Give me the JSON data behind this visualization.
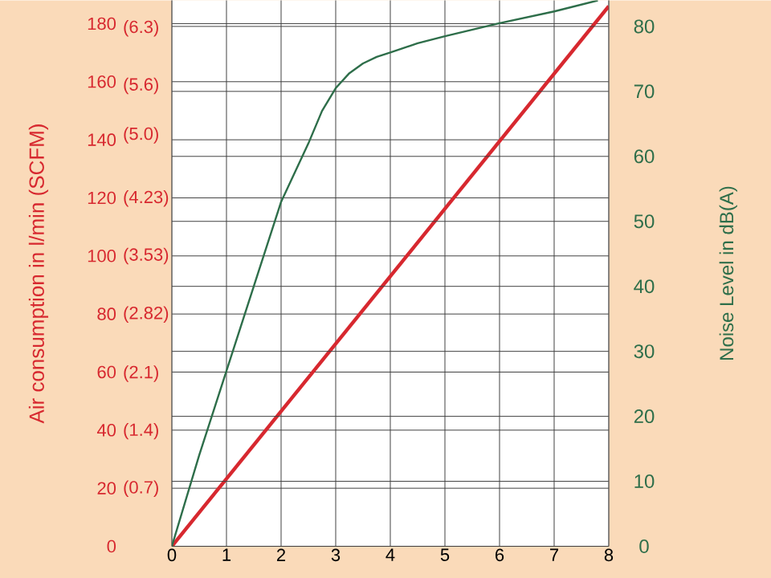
{
  "chart_data": {
    "type": "line",
    "ylabel": "Air consumption in l/min (SCFM)",
    "y2label": "Noise Level in dB(A)",
    "xlim": [
      0,
      8
    ],
    "xticks": [
      0,
      1,
      2,
      3,
      4,
      5,
      6,
      7,
      8
    ],
    "ylim": [
      0,
      188
    ],
    "yticks": [
      0,
      20,
      40,
      60,
      80,
      100,
      120,
      140,
      160,
      180
    ],
    "y3lim": [
      0,
      6.64
    ],
    "y3ticks": [
      {
        "value": 0.7,
        "label": "(0.7)"
      },
      {
        "value": 1.4,
        "label": "(1.4)"
      },
      {
        "value": 2.1,
        "label": "(2.1)"
      },
      {
        "value": 2.82,
        "label": "(2.82)"
      },
      {
        "value": 3.53,
        "label": "(3.53)"
      },
      {
        "value": 4.23,
        "label": "(4.23)"
      },
      {
        "value": 5.0,
        "label": "(5.0)"
      },
      {
        "value": 5.6,
        "label": "(5.6)"
      },
      {
        "value": 6.3,
        "label": "(6.3)"
      }
    ],
    "y2lim": [
      0,
      84
    ],
    "y2ticks": [
      0,
      10,
      20,
      30,
      40,
      50,
      60,
      70,
      80
    ],
    "grid": true,
    "series": [
      {
        "color": "#d7282f",
        "x": [
          0,
          8
        ],
        "values": [
          0,
          186
        ]
      },
      {
        "color": "#2e6e4a",
        "axis": "y2",
        "x": [
          0,
          0.5,
          1,
          1.5,
          2,
          2.5,
          2.75,
          3,
          3.25,
          3.5,
          3.75,
          4,
          4.5,
          5,
          6,
          7,
          7.8
        ],
        "values": [
          0,
          14,
          27,
          40,
          53,
          62,
          67,
          70.5,
          72.8,
          74.3,
          75.3,
          76,
          77.4,
          78.5,
          80.5,
          82.3,
          84
        ]
      }
    ]
  }
}
